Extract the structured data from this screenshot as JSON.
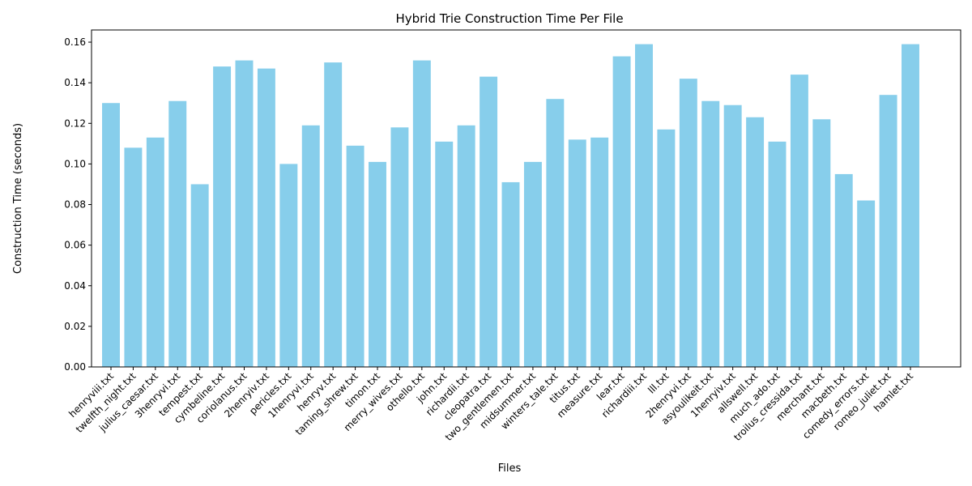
{
  "chart_data": {
    "type": "bar",
    "title": "Hybrid Trie Construction Time Per File",
    "xlabel": "Files",
    "ylabel": "Construction Time (seconds)",
    "ylim": [
      0,
      0.166
    ],
    "yticks": [
      0.0,
      0.02,
      0.04,
      0.06,
      0.08,
      0.1,
      0.12,
      0.14,
      0.16
    ],
    "ytick_labels": [
      "0.00",
      "0.02",
      "0.04",
      "0.06",
      "0.08",
      "0.10",
      "0.12",
      "0.14",
      "0.16"
    ],
    "bar_color": "#87ceeb",
    "grid": false,
    "categories": [
      "henryviii.txt",
      "twelfth_night.txt",
      "julius_caesar.txt",
      "3henryvi.txt",
      "tempest.txt",
      "cymbeline.txt",
      "coriolanus.txt",
      "2henryiv.txt",
      "pericles.txt",
      "1henryvi.txt",
      "henryv.txt",
      "taming_shrew.txt",
      "timon.txt",
      "merry_wives.txt",
      "othello.txt",
      "john.txt",
      "richardii.txt",
      "cleopatra.txt",
      "two_gentlemen.txt",
      "midsummer.txt",
      "winters_tale.txt",
      "titus.txt",
      "measure.txt",
      "lear.txt",
      "richardiii.txt",
      "lll.txt",
      "2henryvi.txt",
      "asyoulikeit.txt",
      "1henryiv.txt",
      "allswell.txt",
      "much_ado.txt",
      "troilus_cressida.txt",
      "merchant.txt",
      "macbeth.txt",
      "comedy_errors.txt",
      "romeo_juliet.txt",
      "hamlet.txt"
    ],
    "values": [
      0.13,
      0.108,
      0.113,
      0.131,
      0.09,
      0.148,
      0.151,
      0.147,
      0.1,
      0.119,
      0.15,
      0.109,
      0.101,
      0.118,
      0.151,
      0.111,
      0.119,
      0.143,
      0.091,
      0.101,
      0.132,
      0.112,
      0.113,
      0.153,
      0.159,
      0.117,
      0.142,
      0.131,
      0.129,
      0.123,
      0.111,
      0.144,
      0.122,
      0.095,
      0.082,
      0.134,
      0.159
    ]
  }
}
